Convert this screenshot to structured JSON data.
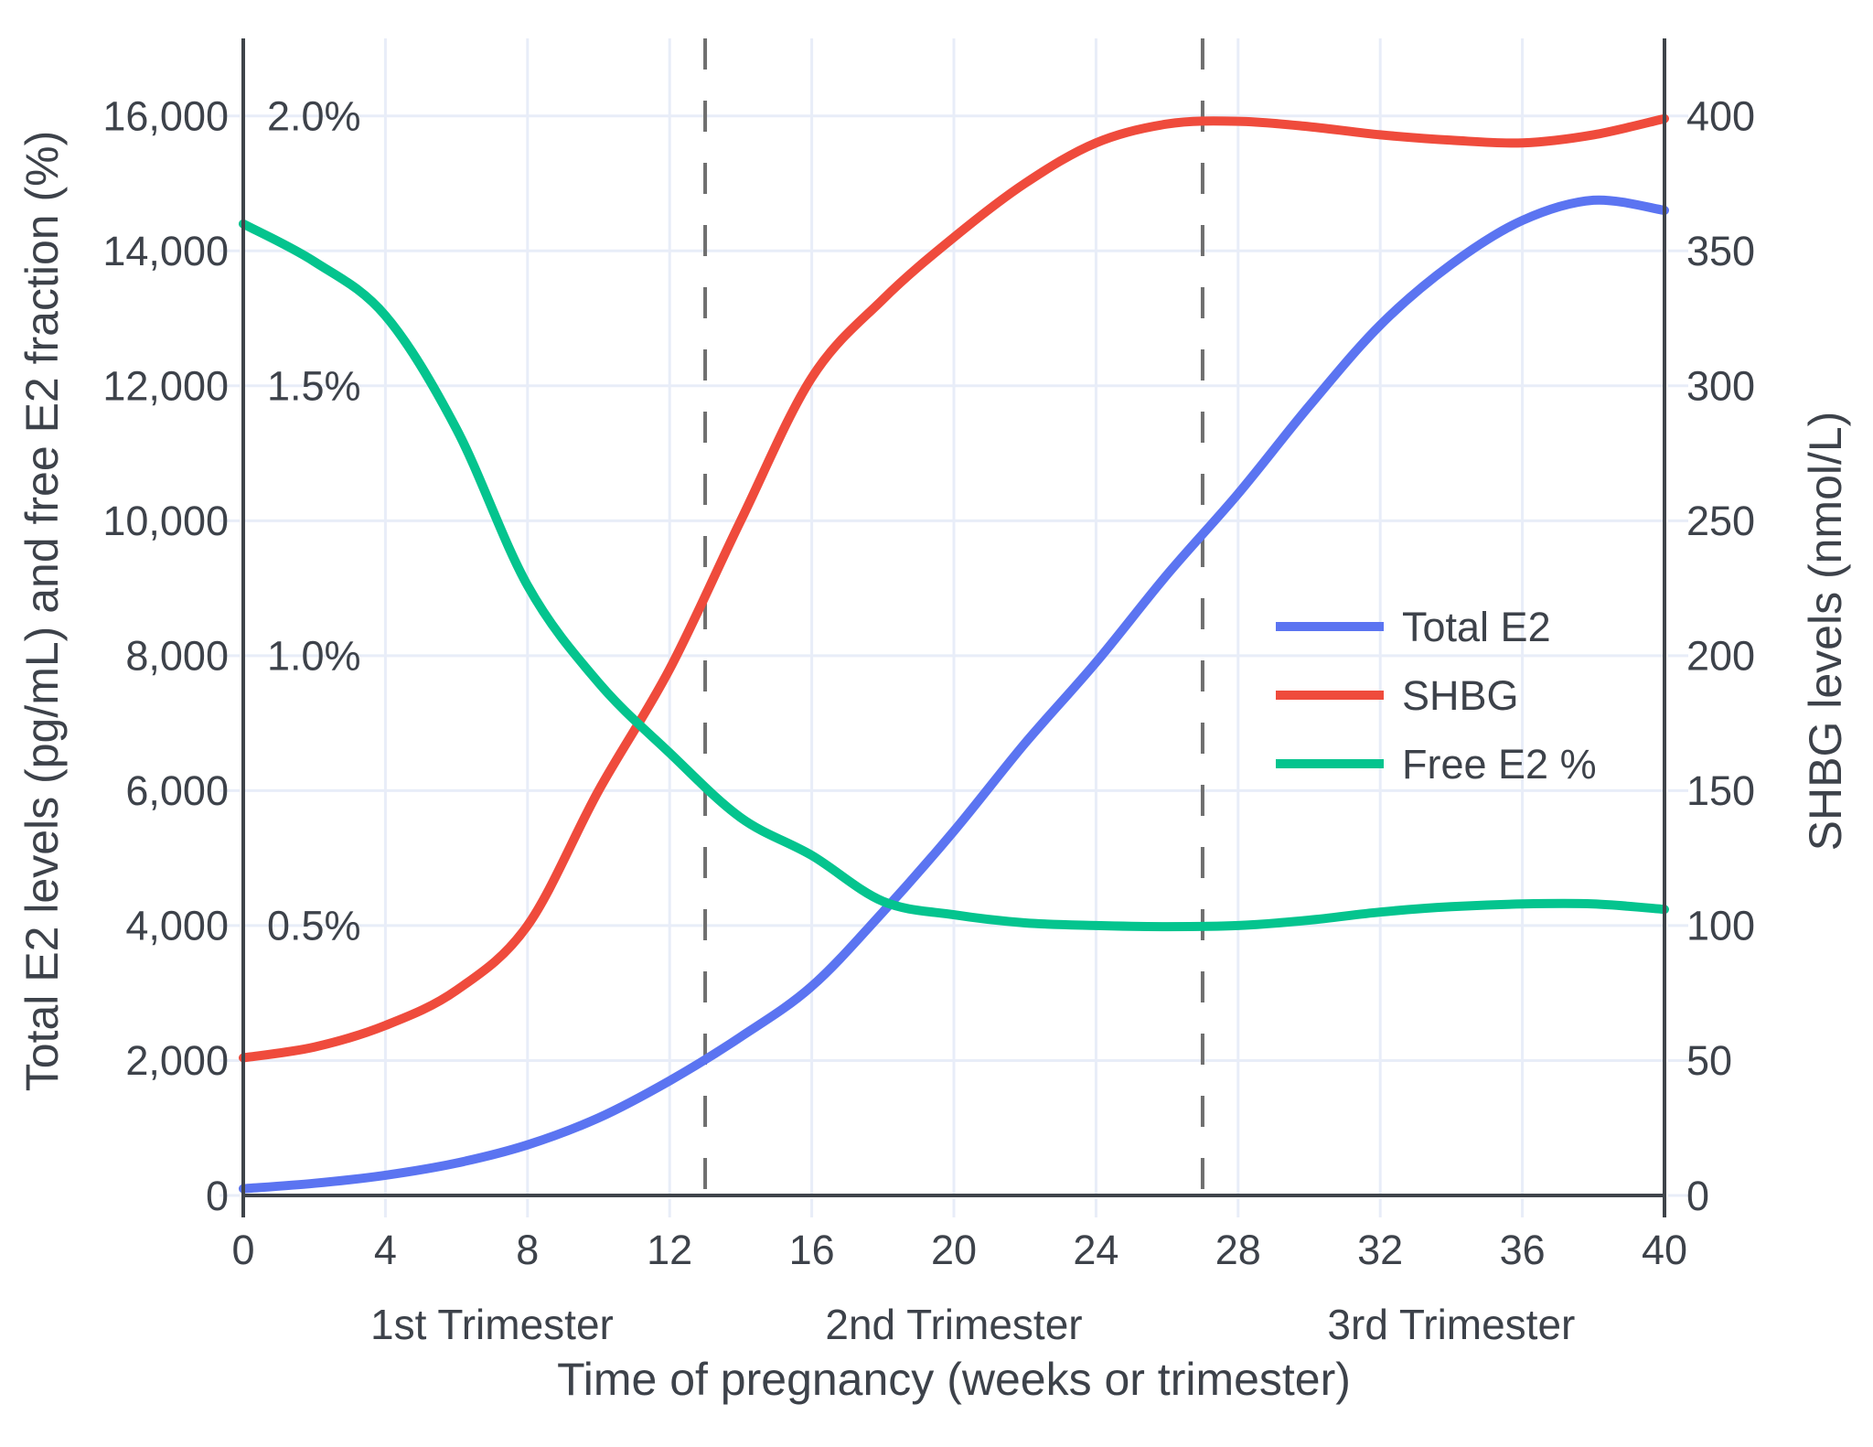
{
  "chart_data": {
    "type": "line",
    "title": "",
    "xlabel": "Time of pregnancy (weeks or trimester)",
    "ylabel_left": "Total E2 levels (pg/mL) and free E2 fraction (%)",
    "ylabel_right": "SHBG levels (nmol/L)",
    "x_range": [
      0,
      40
    ],
    "x_ticks": {
      "values": [
        0,
        4,
        8,
        12,
        16,
        20,
        24,
        28,
        32,
        36,
        40
      ],
      "labels": [
        "0",
        "4",
        "8",
        "12",
        "16",
        "20",
        "24",
        "28",
        "32",
        "36",
        "40"
      ]
    },
    "left_axis": {
      "range": [
        0,
        17150
      ],
      "tick_values": [
        0,
        2000,
        4000,
        6000,
        8000,
        10000,
        12000,
        14000,
        16000
      ],
      "tick_labels": [
        "0",
        "2,000",
        "4,000",
        "6,000",
        "8,000",
        "10,000",
        "12,000",
        "14,000",
        "16,000"
      ]
    },
    "percent_axis": {
      "tick_values_pgml_equiv": [
        4000,
        8000,
        12000,
        16000
      ],
      "tick_labels": [
        "0.5%",
        "1.0%",
        "1.5%",
        "2.0%"
      ],
      "pgml_per_percent": 8000
    },
    "right_axis": {
      "range": [
        0,
        434
      ],
      "tick_values": [
        0,
        50,
        100,
        150,
        200,
        250,
        300,
        350,
        400
      ],
      "tick_labels": [
        "0",
        "50",
        "100",
        "150",
        "200",
        "250",
        "300",
        "350",
        "400"
      ]
    },
    "x": [
      0,
      2,
      4,
      6,
      8,
      10,
      12,
      14,
      16,
      18,
      20,
      22,
      24,
      26,
      28,
      30,
      32,
      34,
      36,
      38,
      40
    ],
    "series": [
      {
        "name": "Total E2",
        "axis": "left",
        "unit": "pg/mL",
        "color": "#5b74f1",
        "values": [
          100,
          180,
          300,
          480,
          750,
          1150,
          1700,
          2350,
          3100,
          4200,
          5400,
          6700,
          7900,
          9200,
          10400,
          11700,
          12900,
          13800,
          14450,
          14750,
          14600
        ]
      },
      {
        "name": "SHBG",
        "axis": "right",
        "unit": "nmol/L",
        "color": "#ef4b3c",
        "values": [
          51,
          55,
          63,
          76,
          100,
          150,
          195,
          250,
          303,
          332,
          355,
          375,
          390,
          397,
          398,
          396,
          393,
          391,
          390,
          393,
          399
        ]
      },
      {
        "name": "Free E2 %",
        "axis": "percent",
        "unit": "%",
        "color": "#04c48e",
        "values": [
          1.8,
          1.73,
          1.63,
          1.42,
          1.13,
          0.95,
          0.82,
          0.7,
          0.63,
          0.545,
          0.52,
          0.505,
          0.5,
          0.498,
          0.5,
          0.51,
          0.525,
          0.535,
          0.54,
          0.54,
          0.53
        ]
      }
    ],
    "trimester_dividers_weeks": [
      13,
      27
    ],
    "trimester_labels": [
      {
        "label": "1st Trimester",
        "week": 7
      },
      {
        "label": "2nd Trimester",
        "week": 20
      },
      {
        "label": "3rd Trimester",
        "week": 34
      }
    ],
    "legend": {
      "position": "inside-right",
      "entries": [
        "Total E2",
        "SHBG",
        "Free E2 %"
      ]
    },
    "grid": true,
    "colors": {
      "grid": "#e8edf8",
      "axis": "#3f444a",
      "text": "#3d424a",
      "divider": "#6f6f6f",
      "background": "#ffffff"
    }
  }
}
